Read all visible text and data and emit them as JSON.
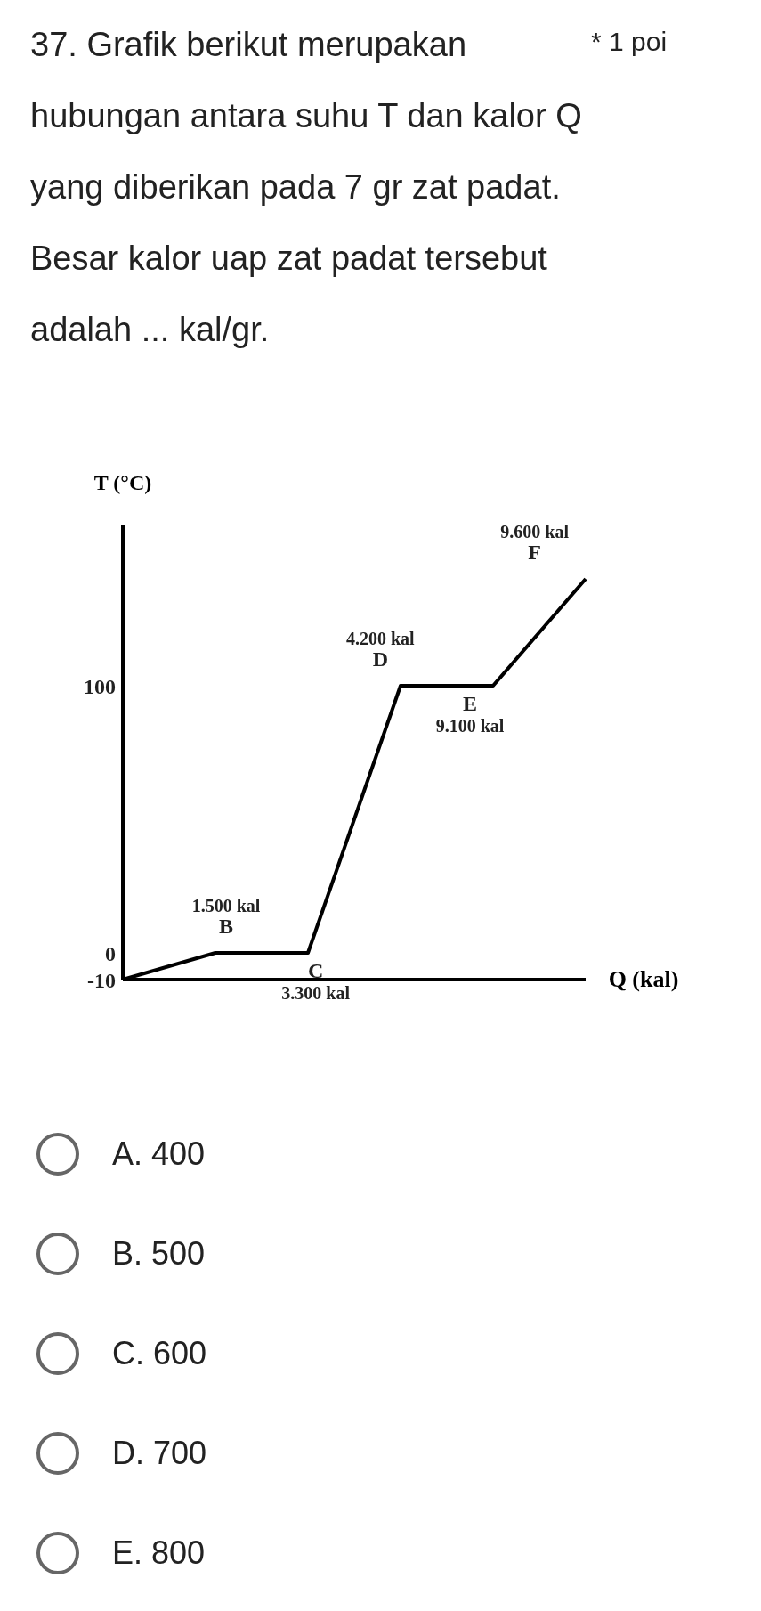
{
  "chart_data": {
    "type": "line",
    "title": "37. Grafik berikut merupakan hubungan antara suhu T dan kalor Q yang diberikan pada 7 gr zat padat. Besar kalor uap zat padat tersebut adalah ... kal/gr.",
    "subtitle": "* 1 poi",
    "xlabel": "Q (kal)",
    "ylabel": "T (°C)",
    "categories": [
      null,
      null,
      null,
      null,
      null,
      null
    ],
    "series": [
      {
        "color": "#000000",
        "values": [
          -10,
          0,
          0,
          100,
          100,
          140
        ]
      }
    ],
    "ylim": [
      -10,
      160
    ],
    "yticks": [
      -10,
      0,
      100
    ],
    "tick_labels": "y",
    "marker": "none",
    "line_style": "solid",
    "annotations": [
      "1.500 kal\nB",
      "C\n3.300 kal",
      "4.200 kal\nD",
      "E\n9.100 kal",
      "9.600 kal\nF",
      "A. 400",
      "B. 500",
      "C. 600",
      "D. 700",
      "E. 800"
    ]
  }
}
